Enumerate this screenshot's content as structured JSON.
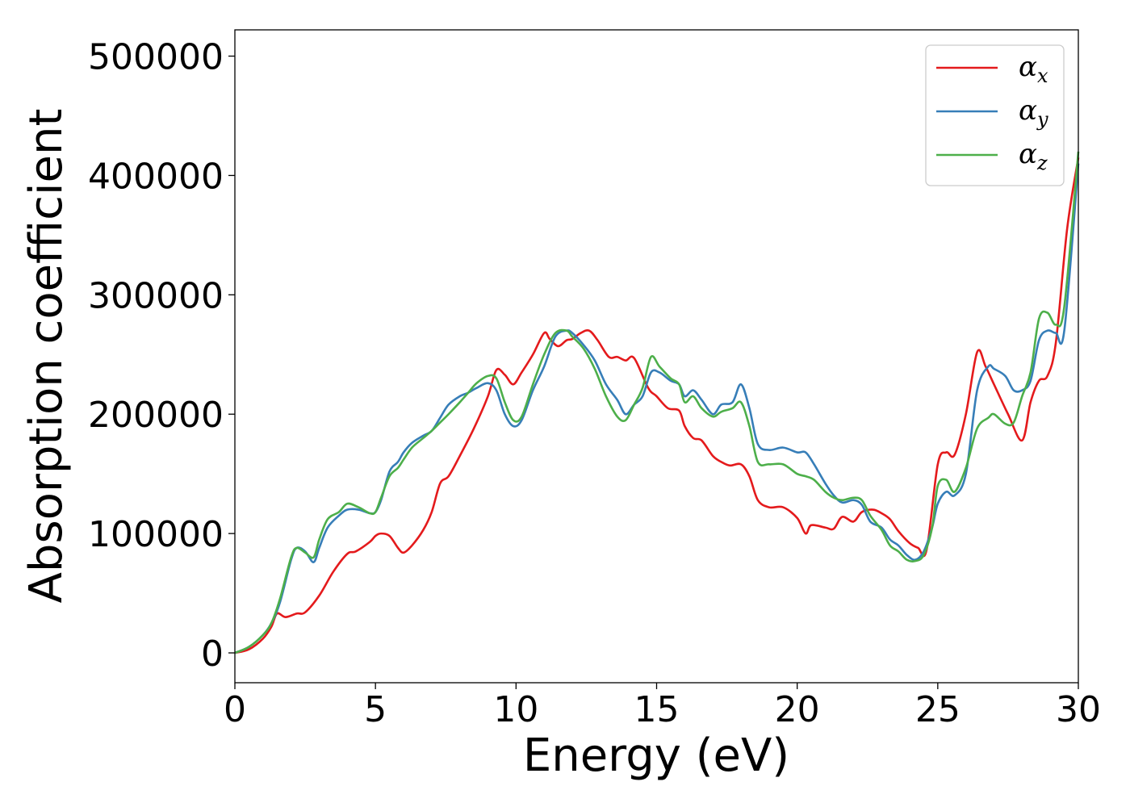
{
  "chart_data": {
    "type": "line",
    "xlabel": "Energy (eV)",
    "ylabel": "Absorption coefficient",
    "xlim": [
      0,
      30
    ],
    "ylim": [
      -25000,
      522000
    ],
    "xticks": [
      "0",
      "5",
      "10",
      "15",
      "20",
      "25",
      "30"
    ],
    "yticks": [
      "0",
      "100000",
      "200000",
      "300000",
      "400000",
      "500000"
    ],
    "grid": false,
    "legend_position": "top-right",
    "series": [
      {
        "name": "αx",
        "symbol": "α",
        "subscript": "x",
        "color": "#e41a1c",
        "x": [
          0,
          0.5,
          1.0,
          1.3,
          1.5,
          1.8,
          2.2,
          2.5,
          3.0,
          3.5,
          4.0,
          4.3,
          4.8,
          5.0,
          5.2,
          5.5,
          5.8,
          6.0,
          6.3,
          6.7,
          7.0,
          7.3,
          7.6,
          8.0,
          8.5,
          9.0,
          9.3,
          9.6,
          9.9,
          10.2,
          10.6,
          11.0,
          11.2,
          11.5,
          11.8,
          12.0,
          12.3,
          12.6,
          12.9,
          13.3,
          13.6,
          13.9,
          14.2,
          14.7,
          15.0,
          15.4,
          15.8,
          16.0,
          16.3,
          16.6,
          17.0,
          17.3,
          17.6,
          18.0,
          18.3,
          18.6,
          19.0,
          19.5,
          20.0,
          20.3,
          20.5,
          21.0,
          21.3,
          21.6,
          22.0,
          22.3,
          22.7,
          23.0,
          23.3,
          23.6,
          24.0,
          24.3,
          24.6,
          25.0,
          25.3,
          25.6,
          26.0,
          26.4,
          26.7,
          27.0,
          27.5,
          28.0,
          28.3,
          28.6,
          28.9,
          29.2,
          29.6,
          30.0
        ],
        "y": [
          0,
          3000,
          12000,
          22000,
          33000,
          30000,
          33000,
          34000,
          48000,
          68000,
          83000,
          85000,
          93000,
          98000,
          100000,
          98000,
          88000,
          84000,
          90000,
          103000,
          118000,
          142000,
          148000,
          165000,
          188000,
          215000,
          237000,
          233000,
          225000,
          235000,
          250000,
          268000,
          263000,
          257000,
          262000,
          263000,
          268000,
          270000,
          262000,
          248000,
          248000,
          245000,
          247000,
          222000,
          215000,
          205000,
          203000,
          190000,
          180000,
          178000,
          165000,
          160000,
          157000,
          158000,
          148000,
          128000,
          122000,
          122000,
          113000,
          100000,
          107000,
          105000,
          104000,
          114000,
          110000,
          118000,
          120000,
          117000,
          112000,
          102000,
          92000,
          88000,
          86000,
          158000,
          168000,
          166000,
          200000,
          252000,
          240000,
          225000,
          200000,
          178000,
          210000,
          228000,
          232000,
          260000,
          355000,
          415000
        ]
      },
      {
        "name": "αy",
        "symbol": "α",
        "subscript": "y",
        "color": "#377eb8",
        "x": [
          0,
          0.5,
          1.0,
          1.3,
          1.6,
          2.0,
          2.2,
          2.5,
          2.8,
          3.0,
          3.3,
          3.7,
          4.0,
          4.4,
          4.8,
          5.0,
          5.2,
          5.5,
          5.8,
          6.0,
          6.3,
          6.7,
          7.0,
          7.3,
          7.6,
          8.0,
          8.3,
          8.6,
          9.0,
          9.3,
          9.6,
          9.9,
          10.2,
          10.6,
          11.0,
          11.4,
          11.8,
          12.0,
          12.4,
          12.8,
          13.2,
          13.6,
          13.9,
          14.2,
          14.5,
          14.8,
          15.1,
          15.5,
          15.8,
          16.0,
          16.3,
          16.6,
          17.0,
          17.3,
          17.7,
          18.0,
          18.3,
          18.6,
          19.0,
          19.5,
          20.0,
          20.3,
          20.6,
          21.0,
          21.3,
          21.6,
          22.0,
          22.3,
          22.6,
          23.0,
          23.3,
          23.6,
          23.9,
          24.2,
          24.5,
          24.8,
          25.0,
          25.3,
          25.6,
          26.0,
          26.4,
          26.8,
          27.0,
          27.4,
          27.7,
          28.0,
          28.3,
          28.6,
          28.9,
          29.2,
          29.5,
          30.0
        ],
        "y": [
          0,
          5000,
          15000,
          25000,
          42000,
          78000,
          88000,
          85000,
          76000,
          88000,
          105000,
          115000,
          120000,
          120000,
          117000,
          118000,
          128000,
          152000,
          160000,
          168000,
          176000,
          182000,
          186000,
          197000,
          208000,
          215000,
          218000,
          222000,
          226000,
          220000,
          200000,
          190000,
          195000,
          220000,
          240000,
          265000,
          270000,
          268000,
          258000,
          245000,
          225000,
          212000,
          200000,
          208000,
          215000,
          235000,
          235000,
          228000,
          225000,
          215000,
          220000,
          212000,
          200000,
          208000,
          210000,
          225000,
          205000,
          175000,
          170000,
          172000,
          168000,
          168000,
          158000,
          142000,
          132000,
          126000,
          128000,
          124000,
          110000,
          105000,
          95000,
          90000,
          82000,
          78000,
          85000,
          105000,
          125000,
          135000,
          132000,
          150000,
          220000,
          240000,
          238000,
          232000,
          220000,
          220000,
          228000,
          262000,
          270000,
          268000,
          270000,
          410000
        ]
      },
      {
        "name": "αz",
        "symbol": "α",
        "subscript": "z",
        "color": "#4daf4a",
        "x": [
          0,
          0.5,
          1.0,
          1.3,
          1.6,
          2.0,
          2.2,
          2.5,
          2.8,
          3.0,
          3.3,
          3.7,
          4.0,
          4.4,
          4.8,
          5.0,
          5.2,
          5.5,
          5.8,
          6.0,
          6.3,
          6.7,
          7.0,
          7.3,
          7.6,
          8.0,
          8.3,
          8.6,
          9.0,
          9.3,
          9.6,
          9.9,
          10.2,
          10.6,
          11.0,
          11.4,
          11.8,
          12.0,
          12.4,
          12.8,
          13.2,
          13.6,
          13.9,
          14.2,
          14.5,
          14.8,
          15.1,
          15.5,
          15.8,
          16.0,
          16.3,
          16.6,
          17.0,
          17.3,
          17.7,
          18.0,
          18.3,
          18.6,
          19.0,
          19.5,
          20.0,
          20.3,
          20.6,
          21.0,
          21.3,
          21.6,
          22.0,
          22.3,
          22.6,
          23.0,
          23.3,
          23.6,
          23.9,
          24.2,
          24.5,
          24.8,
          25.0,
          25.3,
          25.6,
          26.0,
          26.4,
          26.8,
          27.0,
          27.4,
          27.7,
          28.0,
          28.3,
          28.6,
          28.9,
          29.2,
          29.5,
          30.0
        ],
        "y": [
          0,
          5000,
          15000,
          25000,
          45000,
          80000,
          88000,
          84000,
          80000,
          95000,
          112000,
          118000,
          125000,
          122000,
          117000,
          118000,
          130000,
          148000,
          155000,
          162000,
          172000,
          180000,
          186000,
          193000,
          200000,
          210000,
          218000,
          226000,
          232000,
          230000,
          210000,
          195000,
          198000,
          225000,
          250000,
          268000,
          270000,
          265000,
          255000,
          238000,
          215000,
          198000,
          195000,
          208000,
          222000,
          248000,
          240000,
          230000,
          225000,
          210000,
          215000,
          205000,
          198000,
          202000,
          205000,
          210000,
          190000,
          160000,
          158000,
          158000,
          150000,
          148000,
          145000,
          135000,
          130000,
          128000,
          130000,
          128000,
          115000,
          103000,
          90000,
          85000,
          78000,
          77000,
          82000,
          105000,
          140000,
          145000,
          135000,
          155000,
          188000,
          197000,
          200000,
          192000,
          193000,
          215000,
          235000,
          280000,
          285000,
          275000,
          290000,
          420000
        ]
      }
    ]
  }
}
